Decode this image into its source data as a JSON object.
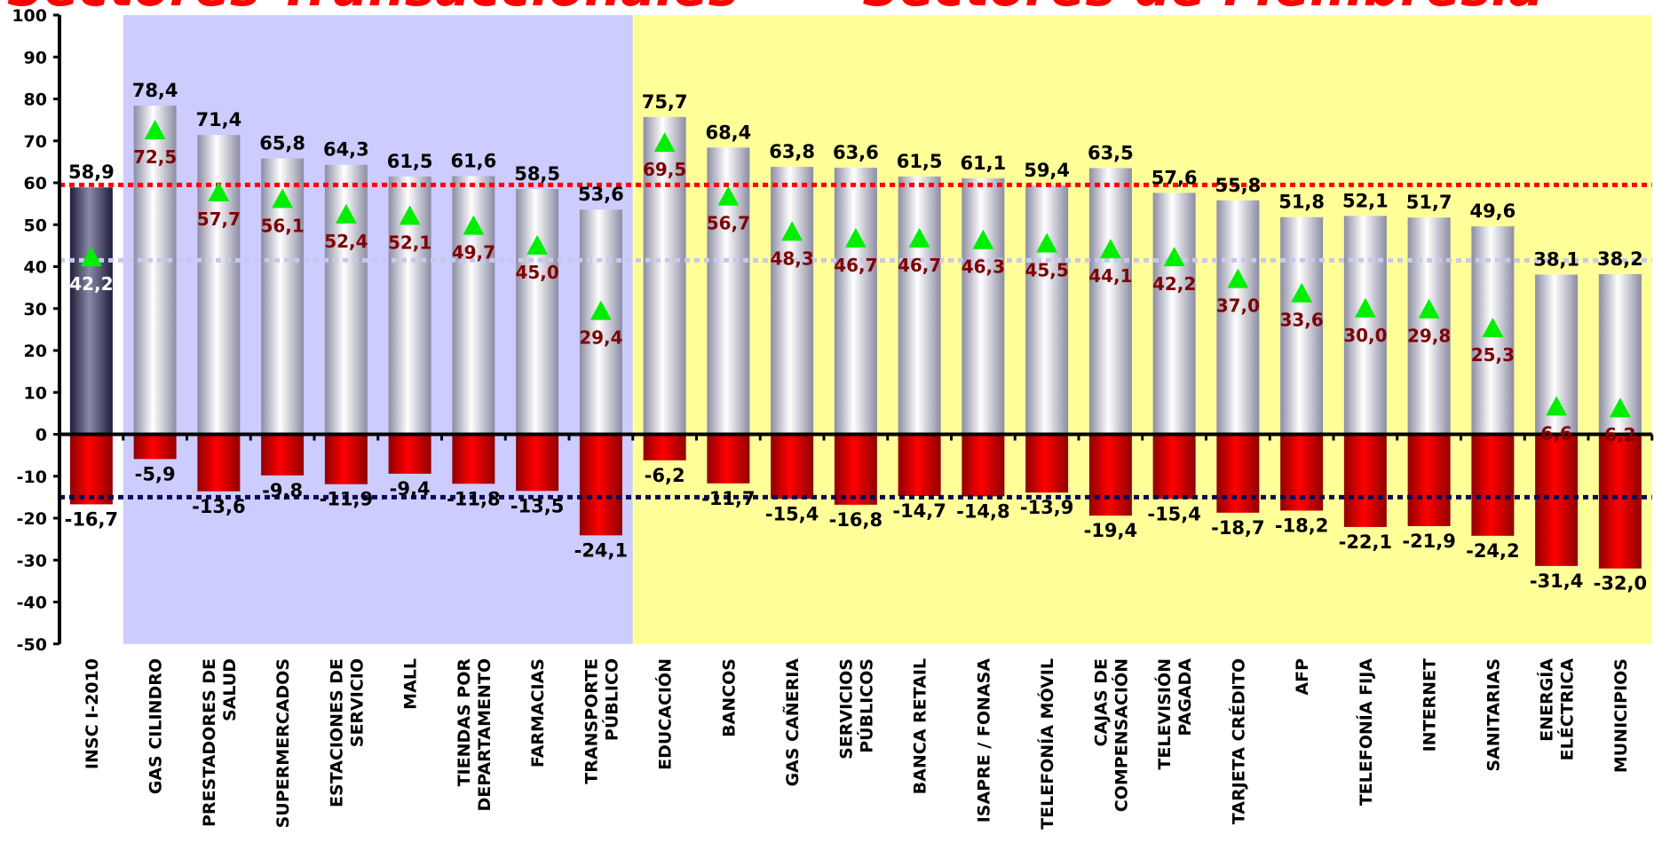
{
  "chart_data": {
    "type": "bar",
    "header_left": "Sectores Transaccionales",
    "header_right": "Sectores de Membresía",
    "ylim": [
      -50,
      100
    ],
    "y_ticks": [
      "100",
      "90",
      "80",
      "70",
      "60",
      "50",
      "40",
      "30",
      "20",
      "10",
      "0",
      "-10",
      "-20",
      "-30",
      "-40",
      "-50"
    ],
    "categories": [
      "INSC I-2010",
      "GAS CILINDRO",
      "PRESTADORES DE SALUD",
      "SUPERMERCADOS",
      "ESTACIONES DE SERVICIO",
      "MALL",
      "TIENDAS POR DEPARTAMENTO",
      "FARMACIAS",
      "TRANSPORTE PÚBLICO",
      "EDUCACIÓN",
      "BANCOS",
      "GAS CAÑERIA",
      "SERVICIOS PÚBLICOS",
      "BANCA RETAIL",
      "ISAPRE / FONASA",
      "TELEFONÍA MÓVIL",
      "CAJAS DE COMPENSACIÓN",
      "TELEVISIÓN PAGADA",
      "TARJETA CRÉDITO",
      "AFP",
      "TELEFONÍA FIJA",
      "INTERNET",
      "SANITARIAS",
      "ENERGÍA ELÉCTRICA",
      "MUNICIPIOS"
    ],
    "category_lines": [
      [
        "INSC I-2010"
      ],
      [
        "GAS CILINDRO"
      ],
      [
        "PRESTADORES DE",
        "SALUD"
      ],
      [
        "SUPERMERCADOS"
      ],
      [
        "ESTACIONES DE",
        "SERVICIO"
      ],
      [
        "MALL"
      ],
      [
        "TIENDAS POR",
        "DEPARTAMENTO"
      ],
      [
        "FARMACIAS"
      ],
      [
        "TRANSPORTE",
        "PÚBLICO"
      ],
      [
        "EDUCACIÓN"
      ],
      [
        "BANCOS"
      ],
      [
        "GAS CAÑERIA"
      ],
      [
        "SERVICIOS",
        "PÚBLICOS"
      ],
      [
        "BANCA RETAIL"
      ],
      [
        "ISAPRE / FONASA"
      ],
      [
        "TELEFONÍA MÓVIL"
      ],
      [
        "CAJAS DE",
        "COMPENSACIÓN"
      ],
      [
        "TELEVISIÓN",
        "PAGADA"
      ],
      [
        "TARJETA CRÉDITO"
      ],
      [
        "AFP"
      ],
      [
        "TELEFONÍA FIJA"
      ],
      [
        "INTERNET"
      ],
      [
        "SANITARIAS"
      ],
      [
        "ENERGÍA",
        "ELÉCTRICA"
      ],
      [
        "MUNICIPIOS"
      ]
    ],
    "series": [
      {
        "values": [
          58.9,
          78.4,
          71.4,
          65.8,
          64.3,
          61.5,
          61.6,
          58.5,
          53.6,
          75.7,
          68.4,
          63.8,
          63.6,
          61.5,
          61.1,
          59.4,
          63.5,
          57.6,
          55.8,
          51.8,
          52.1,
          51.7,
          49.6,
          38.1,
          38.2
        ],
        "labels": [
          "58,9",
          "78,4",
          "71,4",
          "65,8",
          "64,3",
          "61,5",
          "61,6",
          "58,5",
          "53,6",
          "75,7",
          "68,4",
          "63,8",
          "63,6",
          "61,5",
          "61,1",
          "59,4",
          "63,5",
          "57,6",
          "55,8",
          "51,8",
          "52,1",
          "51,7",
          "49,6",
          "38,1",
          "38,2"
        ]
      },
      {
        "values": [
          -16.7,
          -5.9,
          -13.6,
          -9.8,
          -11.9,
          -9.4,
          -11.8,
          -13.5,
          -24.1,
          -6.2,
          -11.7,
          -15.4,
          -16.8,
          -14.7,
          -14.8,
          -13.9,
          -19.4,
          -15.4,
          -18.7,
          -18.2,
          -22.1,
          -21.9,
          -24.2,
          -31.4,
          -32.0
        ],
        "labels": [
          "-16,7",
          "-5,9",
          "-13,6",
          "-9,8",
          "-11,9",
          "-9,4",
          "-11,8",
          "-13,5",
          "-24,1",
          "-6,2",
          "-11,7",
          "-15,4",
          "-16,8",
          "-14,7",
          "-14,8",
          "-13,9",
          "-19,4",
          "-15,4",
          "-18,7",
          "-18,2",
          "-22,1",
          "-21,9",
          "-24,2",
          "-31,4",
          "-32,0"
        ]
      },
      {
        "values": [
          42.2,
          72.5,
          57.7,
          56.1,
          52.4,
          52.1,
          49.7,
          45.0,
          29.4,
          69.5,
          56.7,
          48.3,
          46.7,
          46.7,
          46.3,
          45.5,
          44.1,
          42.2,
          37.0,
          33.6,
          30.0,
          29.8,
          25.3,
          6.6,
          6.2
        ],
        "labels": [
          "42,2",
          "72,5",
          "57,7",
          "56,1",
          "52,4",
          "52,1",
          "49,7",
          "45,0",
          "29,4",
          "69,5",
          "56,7",
          "48,3",
          "46,7",
          "46,7",
          "46,3",
          "45,5",
          "44,1",
          "42,2",
          "37,0",
          "33,6",
          "30,0",
          "29,8",
          "25,3",
          "6,6",
          "6,2"
        ]
      }
    ],
    "reference_lines": [
      {
        "value": 59.5,
        "color": "#ff0000"
      },
      {
        "value": 41.5,
        "color": "#c8c8ee"
      },
      {
        "value": -15.0,
        "color": "#0a0a5a"
      }
    ],
    "regions": [
      {
        "from_index": 1,
        "to_index": 8,
        "color": "#ccccff"
      },
      {
        "from_index": 9,
        "to_index": 24,
        "color": "#ffff99"
      }
    ],
    "colors": {
      "positive_bar": "#c8c8d8",
      "first_bar": "#3a3a5a",
      "negative_bar": "#ff0000",
      "marker": "#00ee00",
      "marker_label": "#800000",
      "marker_label_first": "#ffffff",
      "value_label": "#000000"
    },
    "grid": false,
    "legend": "none"
  }
}
